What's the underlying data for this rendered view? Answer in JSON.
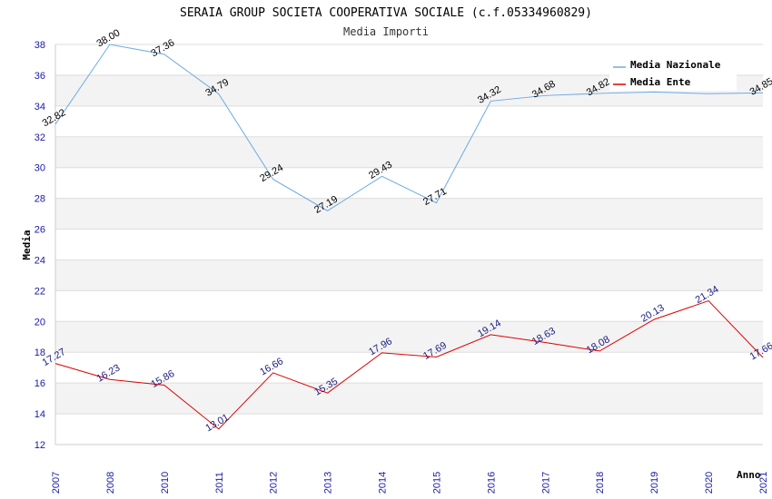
{
  "chart_data": {
    "type": "line",
    "title": "SERAIA GROUP SOCIETA COOPERATIVA SOCIALE (c.f.05334960829)",
    "subtitle": "Media Importi",
    "xlabel": "Anno",
    "ylabel": "Media",
    "ylim": [
      12,
      38
    ],
    "yticks": [
      12,
      14,
      16,
      18,
      20,
      22,
      24,
      26,
      28,
      30,
      32,
      34,
      36,
      38
    ],
    "categories": [
      "2007",
      "2008",
      "2010",
      "2011",
      "2012",
      "2013",
      "2014",
      "2015",
      "2016",
      "2017",
      "2018",
      "2019",
      "2020",
      "2021"
    ],
    "series": [
      {
        "name": "Media Nazionale",
        "color": "#6aaae4",
        "label_color": "#000000",
        "values": [
          32.82,
          38.0,
          37.36,
          34.79,
          29.24,
          27.19,
          29.43,
          27.71,
          34.32,
          34.68,
          34.82,
          34.91,
          34.8,
          34.85
        ],
        "labels": [
          "32.82",
          "38.00",
          "37.36",
          "34.79",
          "29.24",
          "27.19",
          "29.43",
          "27.71",
          "34.32",
          "34.68",
          "34.82",
          "",
          "",
          "34.85"
        ]
      },
      {
        "name": "Media Ente",
        "color": "#dd0000",
        "label_color": "#1a1a80",
        "values": [
          17.27,
          16.23,
          15.86,
          13.01,
          16.66,
          15.35,
          17.96,
          17.69,
          19.14,
          18.63,
          18.08,
          20.13,
          21.34,
          17.66
        ],
        "labels": [
          "17.27",
          "16.23",
          "15.86",
          "13.01",
          "16.66",
          "15.35",
          "17.96",
          "17.69",
          "19.14",
          "18.63",
          "18.08",
          "20.13",
          "21.34",
          "17.66"
        ]
      }
    ],
    "grid": true,
    "legend": "top-right"
  }
}
